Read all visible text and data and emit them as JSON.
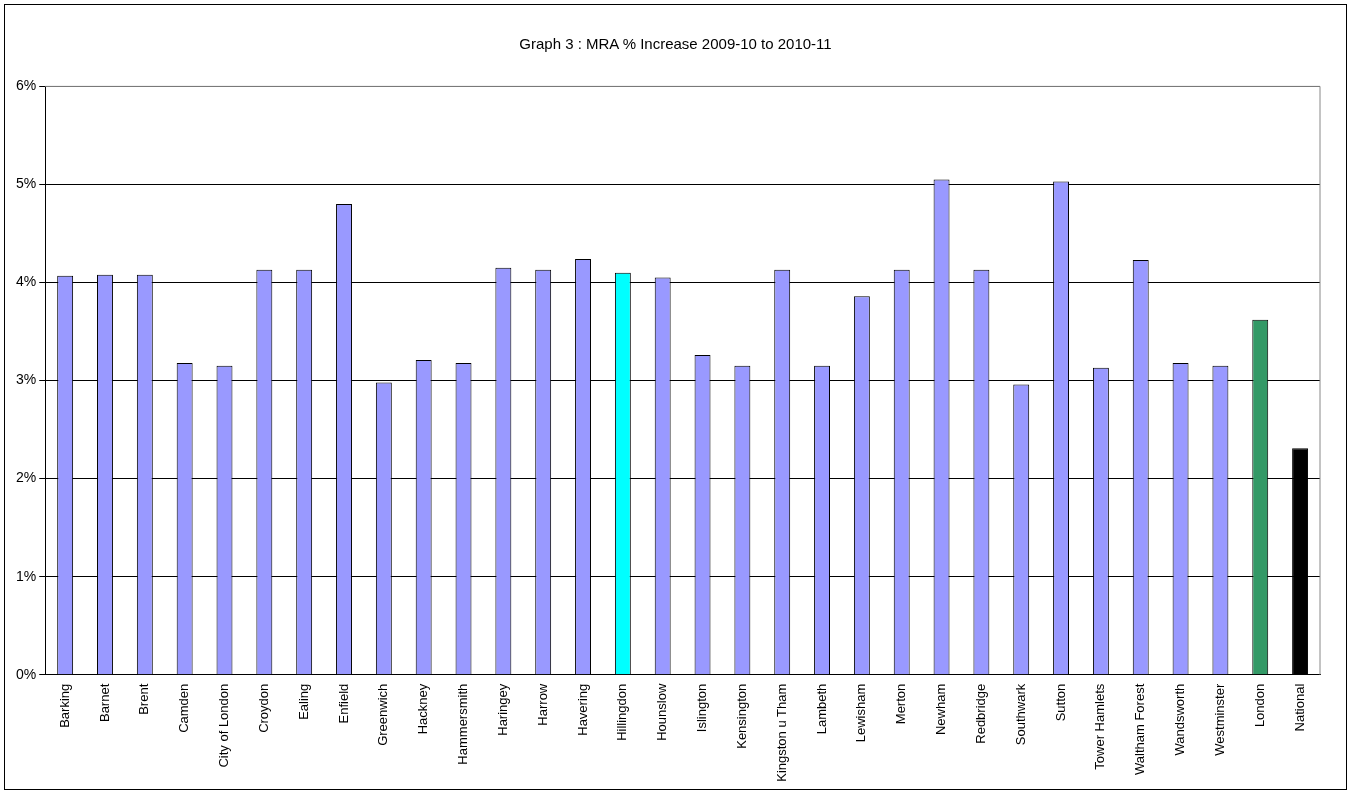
{
  "chart_data": {
    "type": "bar",
    "title": "Graph 3 : MRA % Increase 2009-10 to 2010-11",
    "categories": [
      "Barking",
      "Barnet",
      "Brent",
      "Camden",
      "City of London",
      "Croydon",
      "Ealing",
      "Enfield",
      "Greenwich",
      "Hackney",
      "Hammersmith",
      "Haringey",
      "Harrow",
      "Havering",
      "Hillingdon",
      "Hounslow",
      "Islington",
      "Kensington",
      "Kingston u Tham",
      "Lambeth",
      "Lewisham",
      "Merton",
      "Newham",
      "Redbridge",
      "Southwark",
      "Sutton",
      "Tower Hamlets",
      "Waltham Forest",
      "Wandsworth",
      "Westminster",
      "London",
      "National"
    ],
    "values": [
      4.07,
      4.08,
      4.08,
      3.18,
      3.15,
      4.13,
      4.13,
      4.8,
      2.98,
      3.21,
      3.18,
      4.15,
      4.13,
      4.24,
      4.1,
      4.05,
      3.26,
      3.15,
      4.13,
      3.15,
      3.86,
      4.13,
      5.05,
      4.13,
      2.96,
      5.03,
      3.13,
      4.23,
      3.18,
      3.15,
      3.62,
      2.31
    ],
    "colors": [
      "#9999ff",
      "#9999ff",
      "#9999ff",
      "#9999ff",
      "#9999ff",
      "#9999ff",
      "#9999ff",
      "#9999ff",
      "#9999ff",
      "#9999ff",
      "#9999ff",
      "#9999ff",
      "#9999ff",
      "#9999ff",
      "#00ffff",
      "#9999ff",
      "#9999ff",
      "#9999ff",
      "#9999ff",
      "#9999ff",
      "#9999ff",
      "#9999ff",
      "#9999ff",
      "#9999ff",
      "#9999ff",
      "#9999ff",
      "#9999ff",
      "#9999ff",
      "#9999ff",
      "#9999ff",
      "#339966",
      "#000000"
    ],
    "ylim": [
      0,
      6
    ],
    "yticks": [
      {
        "value": 0,
        "label": "0%"
      },
      {
        "value": 1,
        "label": "1%"
      },
      {
        "value": 2,
        "label": "2%"
      },
      {
        "value": 3,
        "label": "3%"
      },
      {
        "value": 4,
        "label": "4%"
      },
      {
        "value": 5,
        "label": "5%"
      },
      {
        "value": 6,
        "label": "6%"
      }
    ],
    "grid": "y",
    "legend": false
  }
}
